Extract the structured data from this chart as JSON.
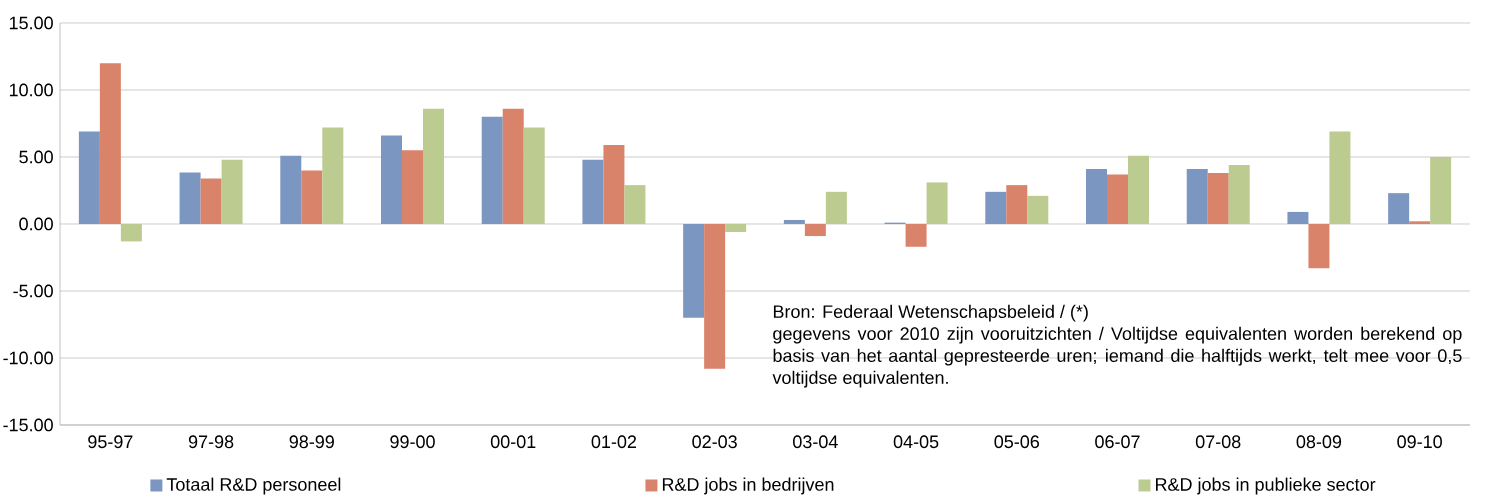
{
  "chart_data": {
    "type": "bar",
    "categories": [
      "95-97",
      "97-98",
      "98-99",
      "99-00",
      "00-01",
      "01-02",
      "02-03",
      "03-04",
      "04-05",
      "05-06",
      "06-07",
      "07-08",
      "08-09",
      "09-10"
    ],
    "series": [
      {
        "name": "Totaal R&D personeel",
        "color": "#7b96c0",
        "values": [
          6.9,
          3.85,
          5.1,
          6.6,
          8.0,
          4.8,
          -7.0,
          0.3,
          0.1,
          2.4,
          4.1,
          4.1,
          0.9,
          2.3
        ]
      },
      {
        "name": "R&D jobs in bedrijven",
        "color": "#d9836a",
        "values": [
          12.0,
          3.4,
          4.0,
          5.5,
          8.6,
          5.9,
          -10.8,
          -0.9,
          -1.7,
          2.9,
          3.7,
          3.8,
          -3.3,
          0.2
        ]
      },
      {
        "name": "R&D jobs in publieke sector",
        "color": "#bccb8f",
        "values": [
          -1.3,
          4.8,
          7.2,
          8.6,
          7.2,
          2.9,
          -0.6,
          2.4,
          3.1,
          2.1,
          5.1,
          4.4,
          6.9,
          5.0
        ]
      }
    ],
    "ylim": [
      -15,
      15
    ],
    "yticks": [
      {
        "value": -15,
        "label": "-15.00"
      },
      {
        "value": -10,
        "label": "-10.00"
      },
      {
        "value": -5,
        "label": "-5.00"
      },
      {
        "value": 0,
        "label": "0.00"
      },
      {
        "value": 5,
        "label": "5.00"
      },
      {
        "value": 10,
        "label": "10.00"
      },
      {
        "value": 15,
        "label": "15.00"
      }
    ],
    "grid": "y",
    "legend": "bottom",
    "annotations": [
      "Bron: Federaal Wetenschapsbeleid / (*)",
      "gegevens voor 2010 zijn vooruitzichten / Voltijdse equivalenten worden berekend op basis van het aantal gepresteerde uren; iemand die halftijds werkt, telt mee voor 0,5 voltijdse equivalenten."
    ]
  }
}
